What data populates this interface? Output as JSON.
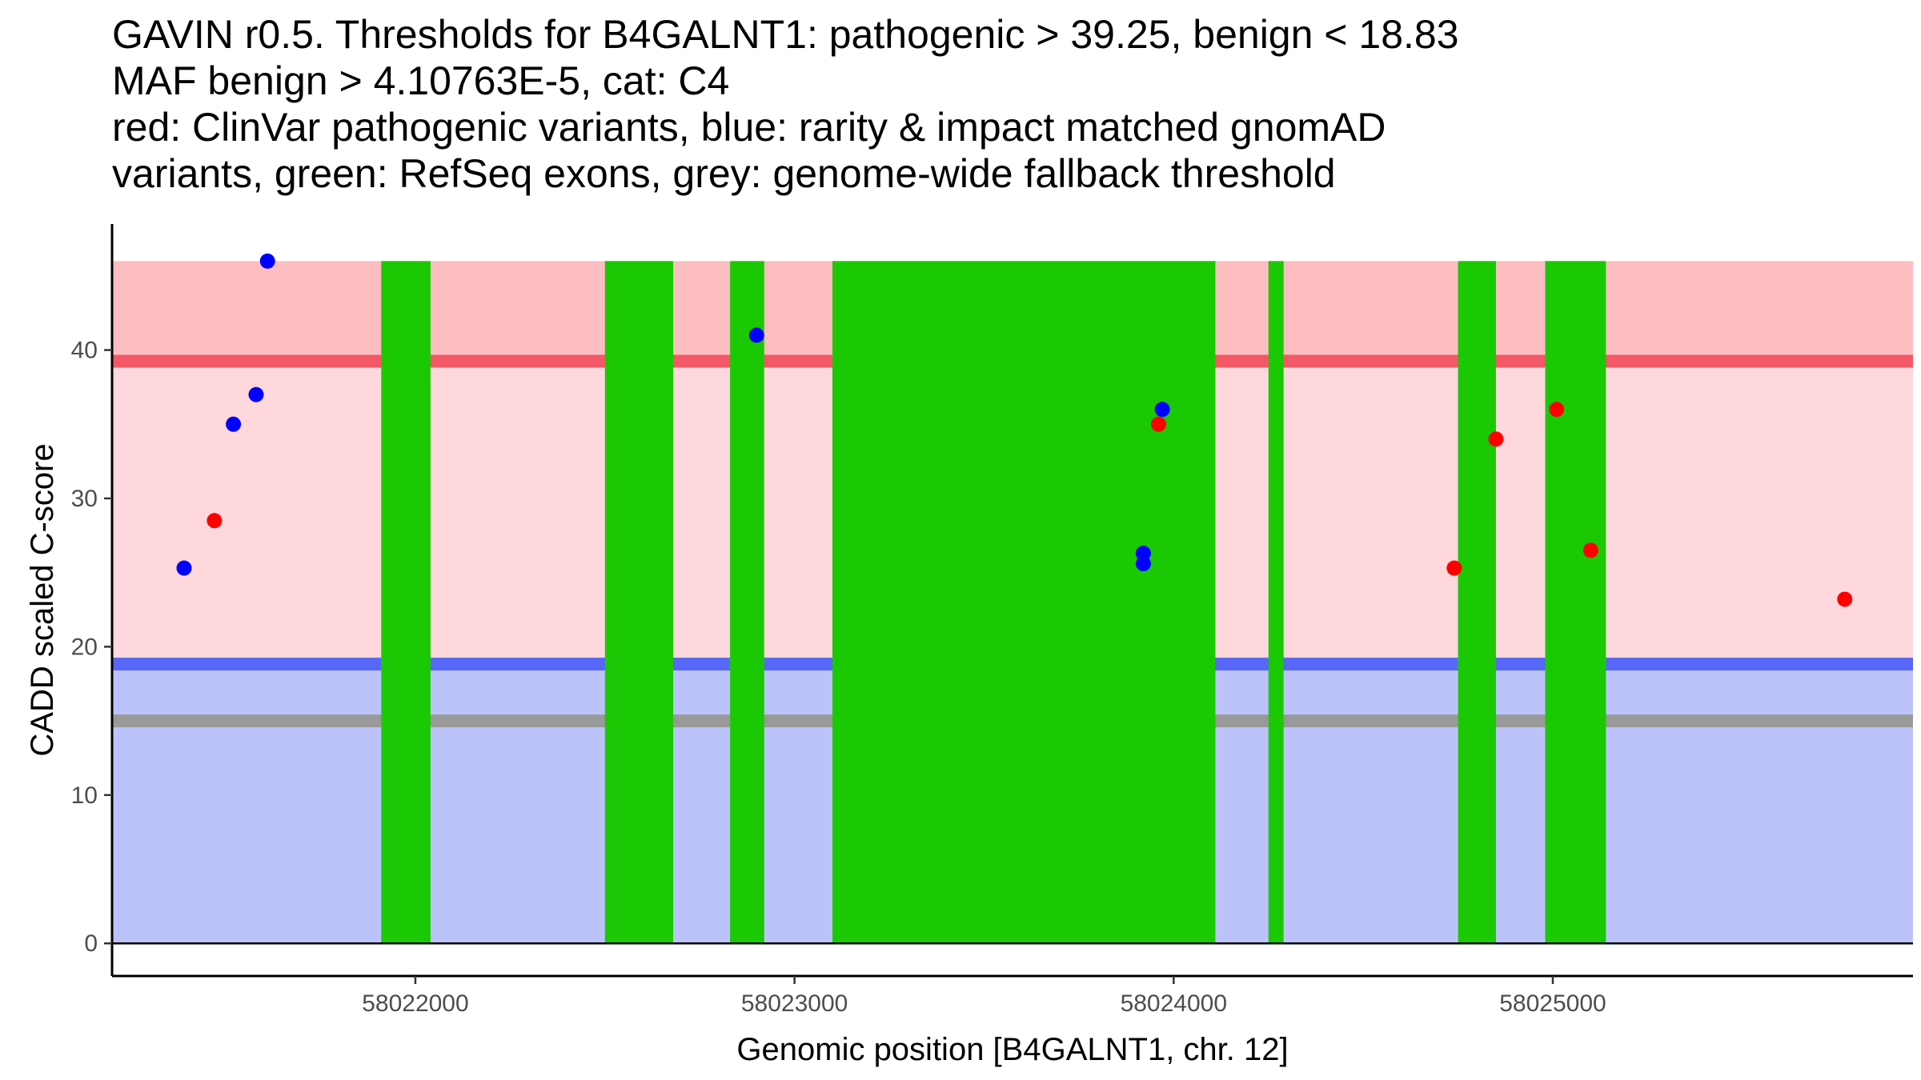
{
  "chart_data": {
    "type": "scatter",
    "title_lines": [
      "GAVIN r0.5. Thresholds for B4GALNT1: pathogenic > 39.25, benign < 18.83",
      "MAF benign > 4.10763E-5, cat: C4",
      "red: ClinVar pathogenic variants, blue: rarity & impact matched gnomAD",
      "variants, green: RefSeq exons, grey: genome-wide fallback threshold"
    ],
    "xlabel": "Genomic position [B4GALNT1, chr. 12]",
    "ylabel": "CADD scaled C-score",
    "xlim": [
      58021200,
      58025950
    ],
    "ylim": [
      -2.2,
      48.5
    ],
    "x_ticks": [
      58022000,
      58023000,
      58024000,
      58025000
    ],
    "y_ticks": [
      0,
      10,
      20,
      30,
      40
    ],
    "background_regions": [
      {
        "name": "pathogenic zone",
        "y_from": 39.25,
        "y_to": 46,
        "color": "#fcbdc1"
      },
      {
        "name": "intermediate zone",
        "y_from": 18.83,
        "y_to": 39.25,
        "color": "#fed8dc"
      },
      {
        "name": "benign zone",
        "y_from": 0,
        "y_to": 18.83,
        "color": "#bcc3fa"
      }
    ],
    "threshold_lines": [
      {
        "name": "pathogenic threshold",
        "y": 39.25,
        "color": "#f45866"
      },
      {
        "name": "benign threshold",
        "y": 18.83,
        "color": "#5767f7"
      },
      {
        "name": "genome-wide fallback threshold",
        "y": 15.0,
        "color": "#999999"
      }
    ],
    "exons": [
      {
        "start": 58021910,
        "end": 58022040
      },
      {
        "start": 58022500,
        "end": 58022680
      },
      {
        "start": 58022830,
        "end": 58022920
      },
      {
        "start": 58023100,
        "end": 58024110
      },
      {
        "start": 58024250,
        "end": 58024290
      },
      {
        "start": 58024750,
        "end": 58024850
      },
      {
        "start": 58024980,
        "end": 58025140
      }
    ],
    "exon_color": "#1bc804",
    "series": [
      {
        "name": "ClinVar pathogenic variants",
        "color": "#ff0000",
        "x": [
          58021470,
          58023960,
          58024740,
          58024850,
          58025010,
          58025100,
          58025770
        ],
        "y": [
          28.5,
          35.0,
          25.3,
          34.0,
          36.0,
          26.5,
          23.2
        ]
      },
      {
        "name": "rarity & impact matched gnomAD variants",
        "color": "#0000ff",
        "x": [
          58021390,
          58021520,
          58021580,
          58021610,
          58022900,
          58023920,
          58023920,
          58023970
        ],
        "y": [
          25.3,
          35.0,
          37.0,
          46.0,
          41.0,
          26.3,
          25.6,
          36.0
        ]
      }
    ]
  }
}
